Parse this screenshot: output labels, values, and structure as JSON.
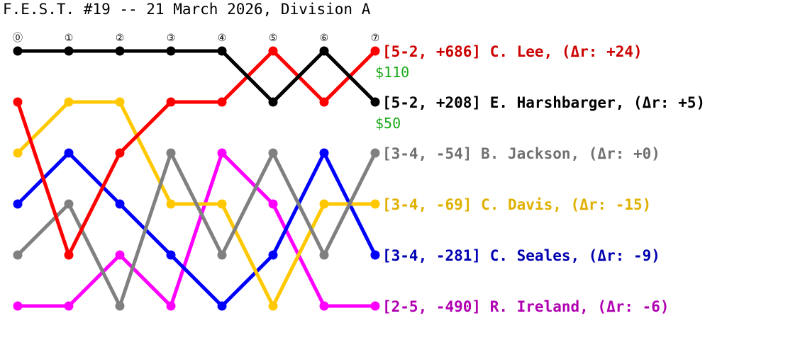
{
  "chart_data": {
    "type": "line",
    "title": "F.E.S.T. #19 -- 21 March 2026, Division A",
    "x": [
      "⓪",
      "①",
      "②",
      "③",
      "④",
      "⑤",
      "⑥",
      "⑦"
    ],
    "ylim": [
      1,
      6
    ],
    "y_inverted": true,
    "grid": false,
    "legend": "right",
    "prize_color": "#1aaa1a",
    "series": [
      {
        "name": "C. Lee",
        "record": "5-2",
        "spread": "+686",
        "rating_change": "+24",
        "label": "[5-2, +686] C. Lee, (Δr: +24)",
        "prize": "$110",
        "color": "#ff0000",
        "text_color": "#cc0000",
        "values": [
          2,
          5,
          3,
          2,
          2,
          1,
          2,
          1
        ]
      },
      {
        "name": "E. Harshbarger",
        "record": "5-2",
        "spread": "+208",
        "rating_change": "+5",
        "label": "[5-2, +208] E. Harshbarger, (Δr: +5)",
        "prize": "$50",
        "color": "#000000",
        "text_color": "#000000",
        "values": [
          1,
          1,
          1,
          1,
          1,
          2,
          1,
          2
        ]
      },
      {
        "name": "B. Jackson",
        "record": "3-4",
        "spread": "-54",
        "rating_change": "+0",
        "label": "[3-4, -54] B. Jackson, (Δr: +0)",
        "prize": "",
        "color": "#808080",
        "text_color": "#707070",
        "values": [
          5,
          4,
          6,
          3,
          5,
          3,
          5,
          3
        ]
      },
      {
        "name": "C. Davis",
        "record": "3-4",
        "spread": "-69",
        "rating_change": "-15",
        "label": "[3-4, -69] C. Davis, (Δr: -15)",
        "prize": "",
        "color": "#ffc800",
        "text_color": "#e0b000",
        "values": [
          3,
          2,
          2,
          4,
          4,
          6,
          4,
          4
        ]
      },
      {
        "name": "C. Seales",
        "record": "3-4",
        "spread": "-281",
        "rating_change": "-9",
        "label": "[3-4, -281] C. Seales, (Δr: -9)",
        "prize": "",
        "color": "#0000ff",
        "text_color": "#0000b0",
        "values": [
          4,
          3,
          4,
          5,
          6,
          5,
          3,
          5
        ]
      },
      {
        "name": "R. Ireland",
        "record": "2-5",
        "spread": "-490",
        "rating_change": "-6",
        "label": "[2-5, -490] R. Ireland, (Δr: -6)",
        "prize": "",
        "color": "#ff00ff",
        "text_color": "#b000b0",
        "values": [
          6,
          6,
          5,
          6,
          3,
          4,
          6,
          6
        ]
      }
    ]
  }
}
